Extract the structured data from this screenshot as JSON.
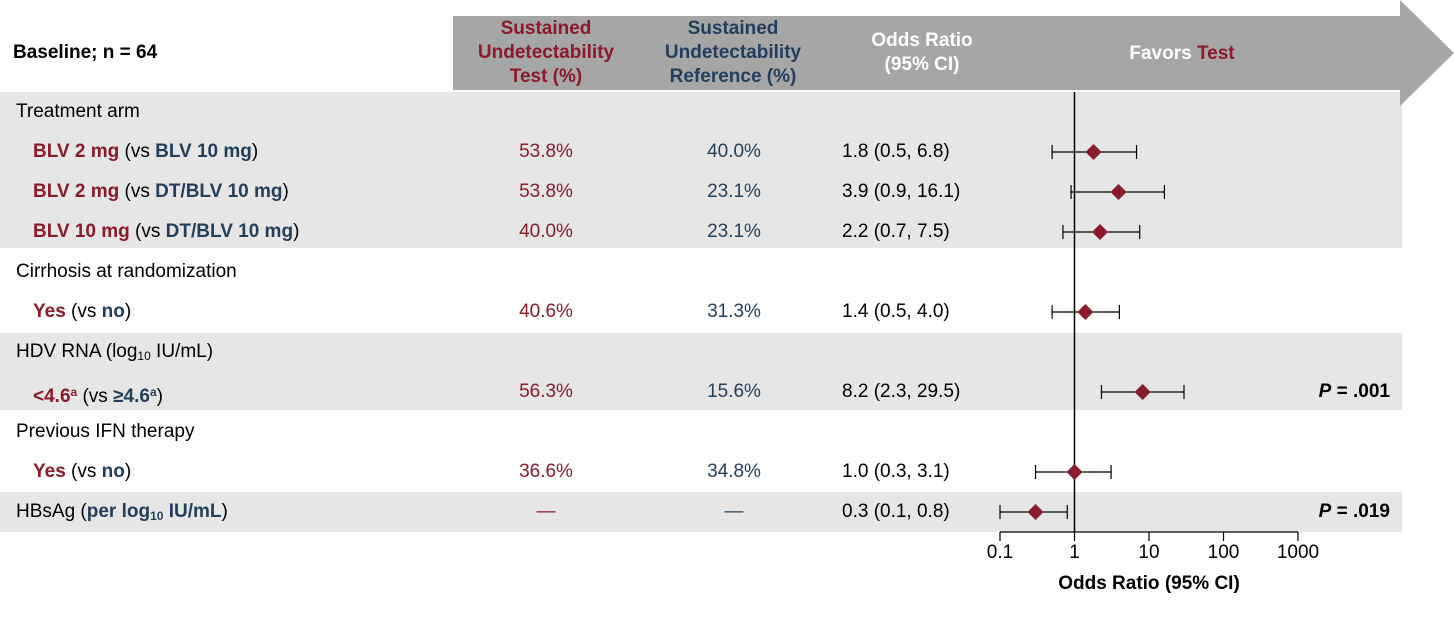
{
  "header": {
    "baseline": "Baseline; n = 64",
    "col_test": [
      "Sustained",
      "Undetectability",
      "Test (%)"
    ],
    "col_ref": [
      "Sustained",
      "Undetectability",
      "Reference (%)"
    ],
    "col_or": [
      "Odds Ratio",
      "(95% CI)"
    ],
    "favors_prefix": "Favors ",
    "favors_word": "Test"
  },
  "colors": {
    "test": "#8b1a2b",
    "reference": "#243f5c",
    "band": "#e6e6e6",
    "arrow": "#a6a6a6",
    "marker": "#8b1a2b"
  },
  "rows": [
    {
      "type": "category",
      "label": "Treatment arm"
    },
    {
      "type": "item",
      "lead": "BLV 2 mg",
      "mid": " (vs ",
      "comp": "BLV 10 mg",
      "tail": ")",
      "test": "53.8%",
      "ref": "40.0%",
      "or_text": "1.8 (0.5, 6.8)",
      "pval": ""
    },
    {
      "type": "item",
      "lead": "BLV 2 mg",
      "mid": " (vs ",
      "comp": "DT/BLV 10 mg",
      "tail": ")",
      "test": "53.8%",
      "ref": "23.1%",
      "or_text": "3.9 (0.9, 16.1)",
      "pval": ""
    },
    {
      "type": "item",
      "lead": "BLV 10 mg",
      "mid": " (vs ",
      "comp": "DT/BLV 10 mg",
      "tail": ")",
      "test": "40.0%",
      "ref": "23.1%",
      "or_text": "2.2 (0.7, 7.5)",
      "pval": ""
    },
    {
      "type": "category",
      "label": "Cirrhosis at randomization"
    },
    {
      "type": "item",
      "lead": "Yes",
      "mid": " (vs ",
      "comp": "no",
      "tail": ")",
      "test": "40.6%",
      "ref": "31.3%",
      "or_text": "1.4 (0.5, 4.0)",
      "pval": ""
    },
    {
      "type": "category",
      "label_pre": "HDV RNA (log",
      "label_sub": "10",
      "label_post": " IU/mL)"
    },
    {
      "type": "item",
      "lead": "<4.6",
      "lead_sup": "a",
      "mid": " (vs ",
      "comp": "≥4.6",
      "comp_sup": "a",
      "tail": ")",
      "test": "56.3%",
      "ref": "15.6%",
      "or_text": "8.2 (2.3, 29.5)",
      "pval_p": "P",
      "pval": " = .001"
    },
    {
      "type": "category",
      "label": "Previous IFN therapy"
    },
    {
      "type": "item",
      "lead": "Yes",
      "mid": " (vs ",
      "comp": "no",
      "tail": ")",
      "test": "36.6%",
      "ref": "34.8%",
      "or_text": "1.0 (0.3, 3.1)",
      "pval": ""
    },
    {
      "type": "single",
      "label_pre": "HBsAg (",
      "label_bold": "per log",
      "label_sub": "10",
      "label_bold2": " IU/mL",
      "label_post": ")",
      "test": "—",
      "ref": "—",
      "or_text": "0.3 (0.1, 0.8)",
      "pval_p": "P",
      "pval": " = .019"
    }
  ],
  "chart_data": {
    "type": "forest",
    "x_scale": "log",
    "xlim": [
      0.1,
      1000
    ],
    "x_ticks": [
      "0.1",
      "1",
      "10",
      "100",
      "1000"
    ],
    "xlabel": "Odds Ratio (95% CI)",
    "reference_line": 1,
    "points": [
      {
        "row": 1,
        "or": 1.8,
        "lo": 0.5,
        "hi": 6.8
      },
      {
        "row": 2,
        "or": 3.9,
        "lo": 0.9,
        "hi": 16.1
      },
      {
        "row": 3,
        "or": 2.2,
        "lo": 0.7,
        "hi": 7.5
      },
      {
        "row": 5,
        "or": 1.4,
        "lo": 0.5,
        "hi": 4.0
      },
      {
        "row": 7,
        "or": 8.2,
        "lo": 2.3,
        "hi": 29.5
      },
      {
        "row": 9,
        "or": 1.0,
        "lo": 0.3,
        "hi": 3.1
      },
      {
        "row": 10,
        "or": 0.3,
        "lo": 0.1,
        "hi": 0.8
      }
    ]
  }
}
